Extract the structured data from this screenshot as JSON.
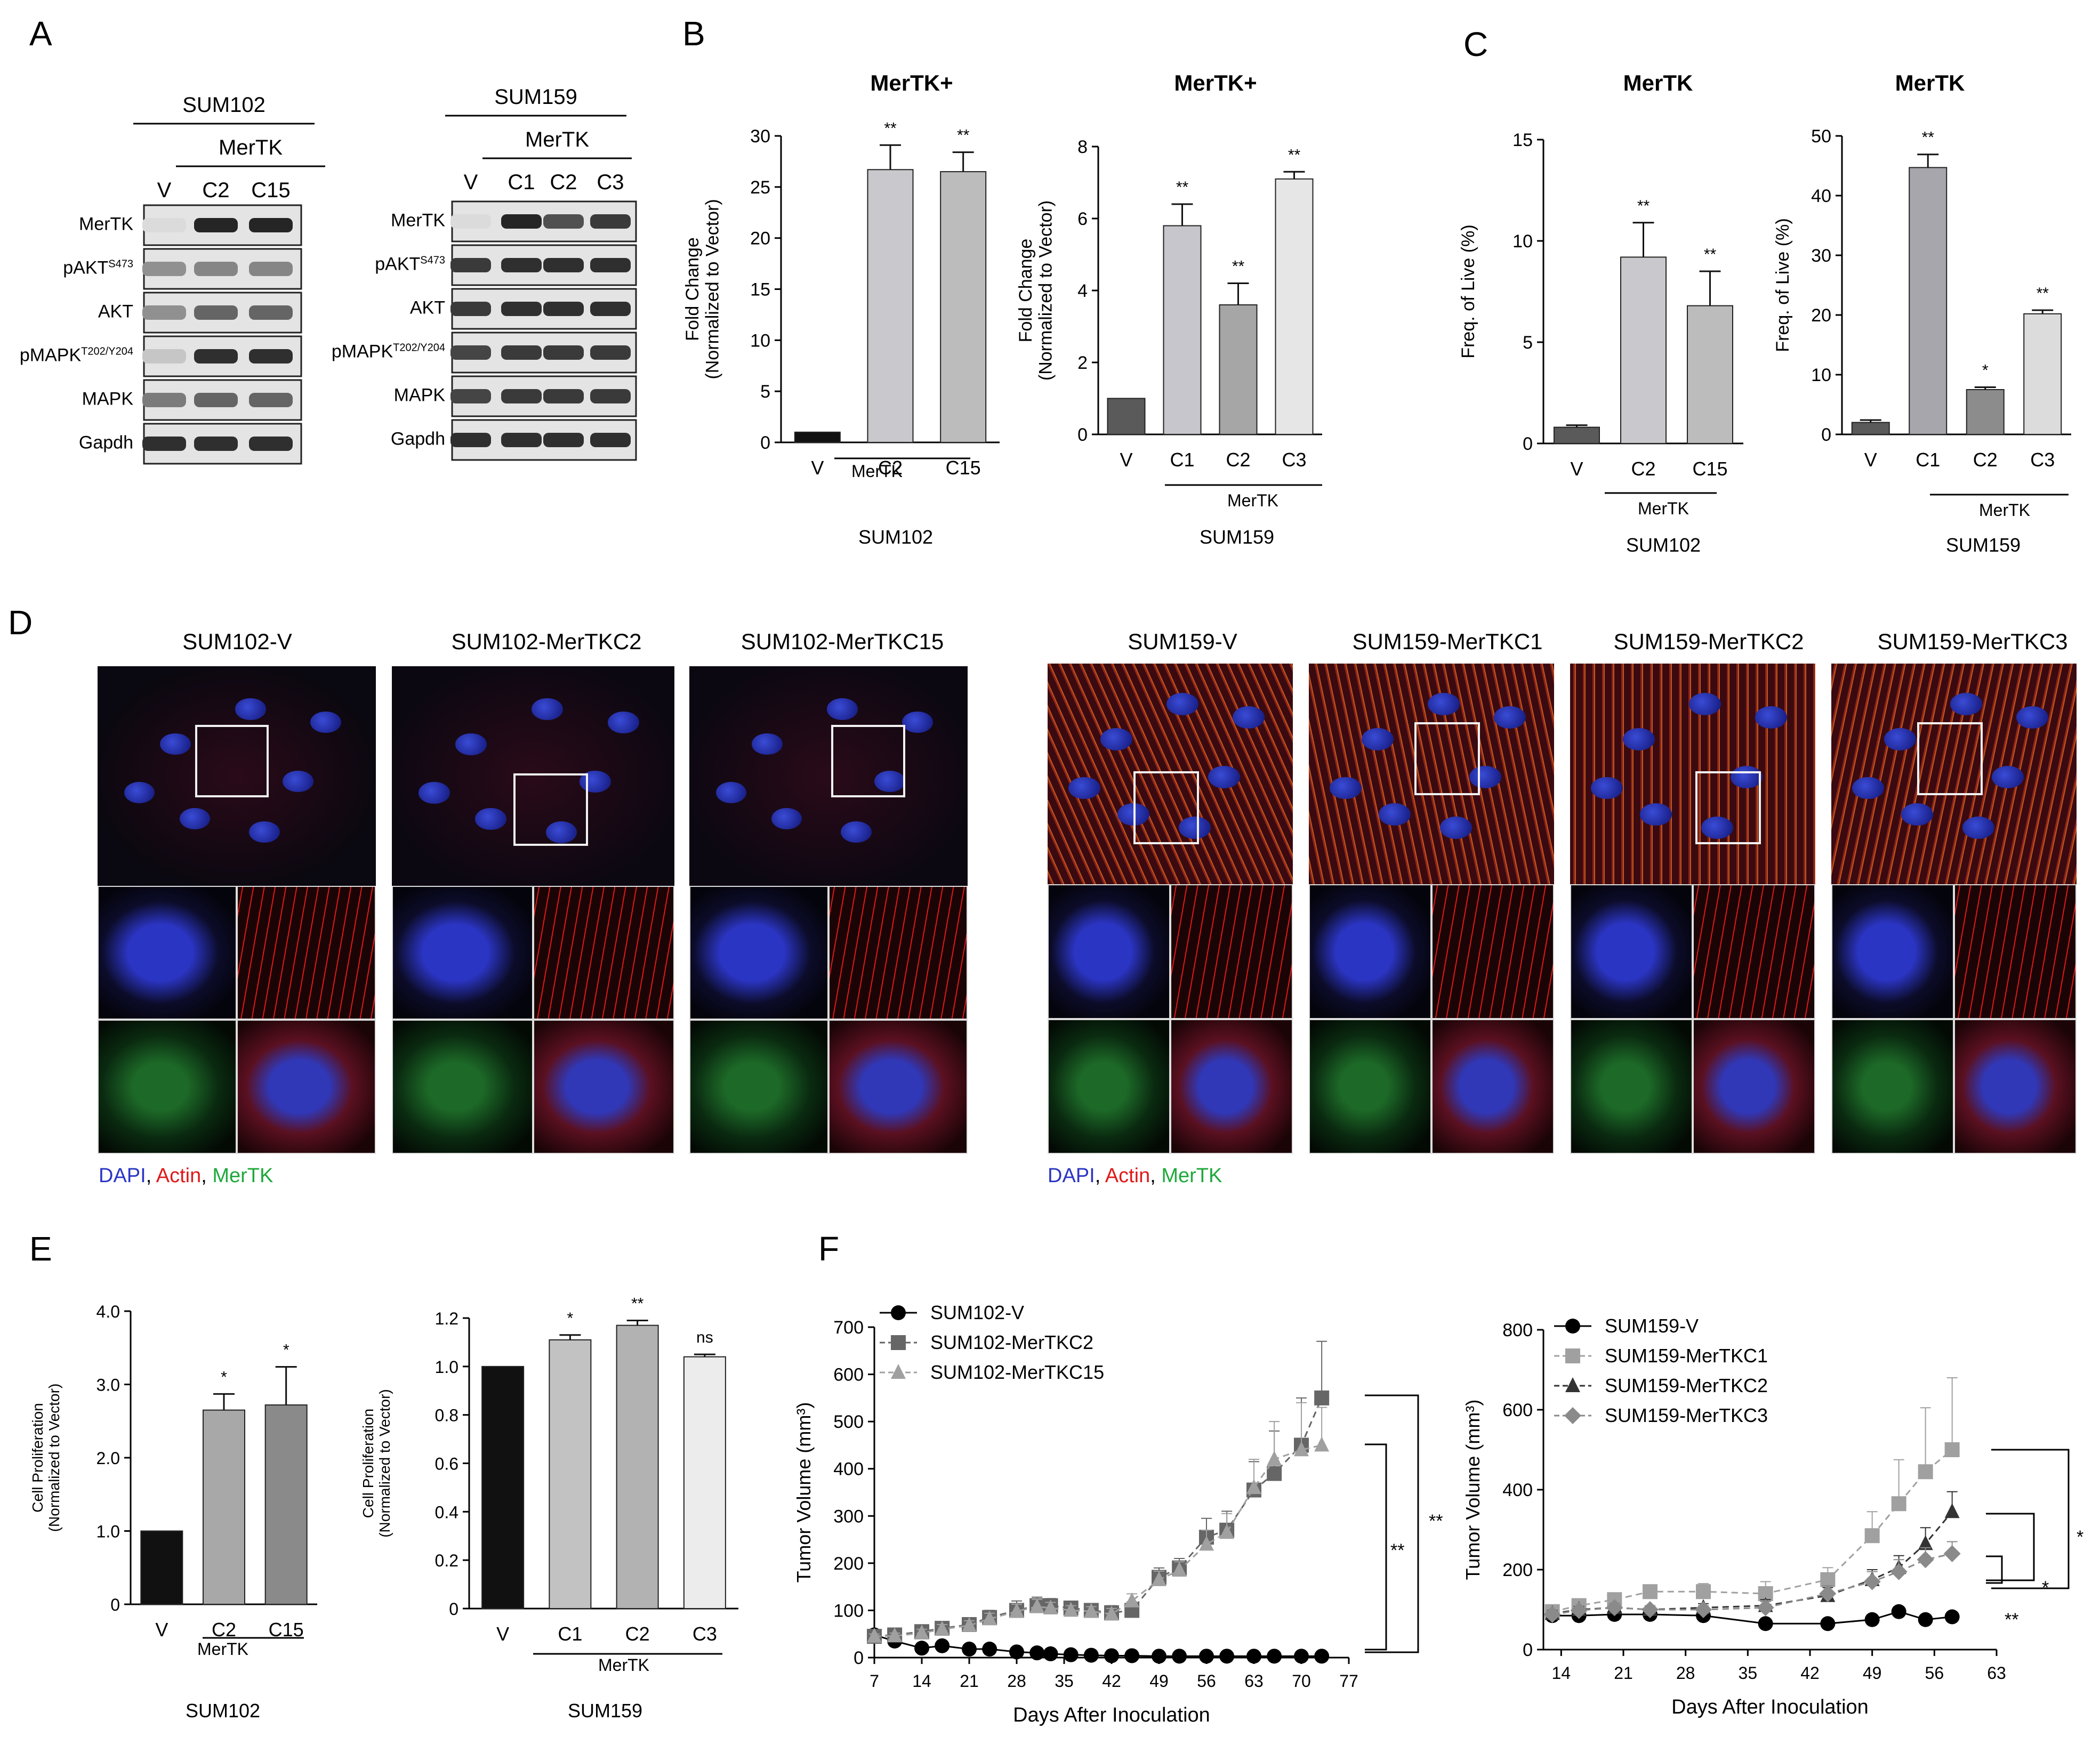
{
  "panels": {
    "A": {
      "label": "A",
      "blot1": {
        "cell_line": "SUM102",
        "group": "MerTK",
        "lanes": [
          "V",
          "C2",
          "C15"
        ],
        "rows": [
          "MerTK",
          "pAKT",
          "AKT",
          "pMAPK",
          "MAPK",
          "Gapdh"
        ],
        "row_sups": [
          "",
          "S473",
          "",
          "T202/Y204",
          "",
          ""
        ],
        "band_intensity": [
          [
            0.05,
            0.9,
            0.9
          ],
          [
            0.4,
            0.45,
            0.45
          ],
          [
            0.4,
            0.6,
            0.6
          ],
          [
            0.15,
            0.85,
            0.85
          ],
          [
            0.5,
            0.6,
            0.6
          ],
          [
            0.85,
            0.85,
            0.85
          ]
        ]
      },
      "blot2": {
        "cell_line": "SUM159",
        "group": "MerTK",
        "lanes": [
          "V",
          "C1",
          "C2",
          "C3"
        ],
        "rows": [
          "MerTK",
          "pAKT",
          "AKT",
          "pMAPK",
          "MAPK",
          "Gapdh"
        ],
        "row_sups": [
          "",
          "S473",
          "",
          "T202/Y204",
          "",
          ""
        ],
        "band_intensity": [
          [
            0.05,
            0.9,
            0.7,
            0.8
          ],
          [
            0.8,
            0.85,
            0.85,
            0.85
          ],
          [
            0.8,
            0.85,
            0.85,
            0.85
          ],
          [
            0.75,
            0.8,
            0.8,
            0.8
          ],
          [
            0.75,
            0.8,
            0.8,
            0.8
          ],
          [
            0.85,
            0.85,
            0.85,
            0.85
          ]
        ]
      }
    },
    "B": {
      "label": "B"
    },
    "C": {
      "label": "C"
    },
    "D": {
      "label": "D",
      "sum102": {
        "titles": [
          "SUM102-V",
          "SUM102-MerTKC2",
          "SUM102-MerTKC15"
        ],
        "legend": {
          "dapi": "DAPI",
          "actin": "Actin",
          "mertk": "MerTK"
        }
      },
      "sum159": {
        "titles": [
          "SUM159-V",
          "SUM159-MerTKC1",
          "SUM159-MerTKC2",
          "SUM159-MerTKC3"
        ],
        "legend": {
          "dapi": "DAPI",
          "actin": "Actin",
          "mertk": "MerTK"
        }
      },
      "colors": {
        "dapi": "#2b35c4",
        "actin": "#e01818",
        "mertk": "#1ea83a"
      }
    },
    "E": {
      "label": "E"
    },
    "F": {
      "label": "F"
    }
  },
  "chart_data": [
    {
      "id": "B1",
      "type": "bar",
      "title": "MerTK+",
      "categories": [
        "V",
        "C2",
        "C15"
      ],
      "values": [
        1,
        26.7,
        26.5
      ],
      "errors": [
        0,
        2.4,
        1.9
      ],
      "sig": [
        "",
        "**",
        "**"
      ],
      "colors": [
        "#111111",
        "#c9c9cd",
        "#bcbcbc"
      ],
      "ylabel": [
        "Fold Change",
        "(Normalized to Vector)"
      ],
      "yticks": [
        "0",
        "5",
        "10",
        "15",
        "20",
        "25",
        "30"
      ],
      "ylim": [
        0,
        30
      ],
      "group_label": "MerTK",
      "cell_line": "SUM102"
    },
    {
      "id": "B2",
      "type": "bar",
      "title": "MerTK+",
      "categories": [
        "V",
        "C1",
        "C2",
        "C3"
      ],
      "values": [
        1,
        5.8,
        3.6,
        7.1
      ],
      "errors": [
        0,
        0.6,
        0.6,
        0.2
      ],
      "sig": [
        "",
        "**",
        "**",
        "**"
      ],
      "colors": [
        "#5a5a5a",
        "#c6c6cc",
        "#a6a6a6",
        "#e6e6e6"
      ],
      "ylabel": [
        "Fold Change",
        "(Normalized to Vector)"
      ],
      "yticks": [
        "0",
        "2",
        "4",
        "6",
        "8"
      ],
      "ylim": [
        0,
        8
      ],
      "group_label": "MerTK",
      "cell_line": "SUM159"
    },
    {
      "id": "C1",
      "type": "bar",
      "title": "MerTK",
      "categories": [
        "V",
        "C2",
        "C15"
      ],
      "values": [
        0.8,
        9.2,
        6.8
      ],
      "errors": [
        0.1,
        1.7,
        1.7
      ],
      "sig": [
        "",
        "**",
        "**"
      ],
      "colors": [
        "#5a5a5a",
        "#c9c9cd",
        "#bcbcbc"
      ],
      "ylabel": [
        "Freq. of Live (%)"
      ],
      "yticks": [
        "0",
        "5",
        "10",
        "15"
      ],
      "ylim": [
        0,
        15
      ],
      "group_label": "MerTK",
      "cell_line": "SUM102"
    },
    {
      "id": "C2",
      "type": "bar",
      "title": "MerTK",
      "categories": [
        "V",
        "C1",
        "C2",
        "C3"
      ],
      "values": [
        2,
        44.7,
        7.5,
        20.2
      ],
      "errors": [
        0.4,
        2.2,
        0.4,
        0.6
      ],
      "sig": [
        "",
        "**",
        "*",
        "**"
      ],
      "colors": [
        "#5a5a5a",
        "#a6a6ac",
        "#8c8c8c",
        "#dcdcdc"
      ],
      "ylabel": [
        "Freq. of Live (%)"
      ],
      "yticks": [
        "0",
        "10",
        "20",
        "30",
        "40",
        "50"
      ],
      "ylim": [
        0,
        50
      ],
      "group_label": "MerTK",
      "cell_line": "SUM159"
    },
    {
      "id": "E1",
      "type": "bar",
      "title": "",
      "categories": [
        "V",
        "C2",
        "C15"
      ],
      "values": [
        1.0,
        2.65,
        2.72
      ],
      "errors": [
        0,
        0.22,
        0.52
      ],
      "sig": [
        "",
        "*",
        "*"
      ],
      "colors": [
        "#111111",
        "#a8a8a8",
        "#8a8a8a"
      ],
      "ylabel": [
        "Cell Proliferation",
        "(Normalized to Vector)"
      ],
      "yticks": [
        "0",
        "1.0",
        "2.0",
        "3.0",
        "4.0"
      ],
      "ylim": [
        0,
        4
      ],
      "group_label": "MerTK",
      "cell_line": "SUM102"
    },
    {
      "id": "E2",
      "type": "bar",
      "title": "",
      "categories": [
        "V",
        "C1",
        "C2",
        "C3"
      ],
      "values": [
        1.0,
        1.11,
        1.17,
        1.04
      ],
      "errors": [
        0,
        0.02,
        0.02,
        0.01
      ],
      "sig": [
        "",
        "*",
        "**",
        "ns"
      ],
      "colors": [
        "#111111",
        "#c2c2c2",
        "#b2b2b2",
        "#ececec"
      ],
      "ylabel": [
        "Cell Proliferation",
        "(Normalized to Vector)"
      ],
      "yticks": [
        "0",
        "0.2",
        "0.4",
        "0.6",
        "0.8",
        "1.0",
        "1.2"
      ],
      "ylim": [
        0,
        1.2
      ],
      "group_label": "MerTK",
      "cell_line": "SUM159"
    },
    {
      "id": "F1",
      "type": "line",
      "title": "",
      "xlabel": "Days After Inoculation",
      "ylabel": "Tumor Volume (mm³)",
      "xlim": [
        7,
        77
      ],
      "ylim": [
        0,
        700
      ],
      "xticks": [
        "7",
        "14",
        "21",
        "28",
        "35",
        "42",
        "49",
        "56",
        "63",
        "70",
        "77"
      ],
      "yticks": [
        "0",
        "100",
        "200",
        "300",
        "400",
        "500",
        "600",
        "700"
      ],
      "series": [
        {
          "name": "SUM102-V",
          "marker": "circle",
          "color": "#000000",
          "dash": false,
          "x": [
            7,
            10,
            14,
            17,
            21,
            24,
            28,
            31,
            33,
            36,
            39,
            42,
            45,
            49,
            52,
            56,
            59,
            63,
            66,
            70,
            73
          ],
          "y": [
            48,
            35,
            20,
            25,
            18,
            18,
            12,
            10,
            8,
            6,
            5,
            4,
            4,
            3,
            3,
            3,
            3,
            3,
            3,
            3,
            3
          ],
          "err": [
            5,
            5,
            5,
            5,
            5,
            5,
            5,
            5,
            5,
            5,
            5,
            5,
            5,
            5,
            5,
            5,
            5,
            5,
            5,
            5,
            5
          ]
        },
        {
          "name": "SUM102-MerTKC2",
          "marker": "square",
          "color": "#666666",
          "dash": true,
          "x": [
            7,
            10,
            14,
            17,
            21,
            24,
            28,
            31,
            33,
            36,
            39,
            42,
            45,
            49,
            52,
            56,
            59,
            63,
            66,
            70,
            73
          ],
          "y": [
            45,
            48,
            55,
            62,
            70,
            85,
            100,
            110,
            110,
            105,
            100,
            95,
            100,
            170,
            190,
            255,
            270,
            355,
            390,
            450,
            550
          ],
          "err": [
            5,
            8,
            10,
            12,
            12,
            15,
            20,
            18,
            15,
            12,
            12,
            15,
            18,
            20,
            20,
            40,
            40,
            60,
            90,
            100,
            120
          ]
        },
        {
          "name": "SUM102-MerTKC15",
          "marker": "triangle",
          "color": "#a0a0a0",
          "dash": true,
          "x": [
            7,
            10,
            14,
            17,
            21,
            24,
            28,
            31,
            33,
            36,
            39,
            42,
            45,
            49,
            52,
            56,
            59,
            63,
            66,
            70,
            73
          ],
          "y": [
            45,
            46,
            52,
            60,
            68,
            82,
            98,
            108,
            105,
            100,
            98,
            92,
            120,
            165,
            185,
            240,
            265,
            360,
            420,
            440,
            450
          ],
          "err": [
            5,
            6,
            8,
            10,
            10,
            12,
            15,
            15,
            12,
            10,
            10,
            12,
            15,
            18,
            18,
            30,
            40,
            60,
            80,
            100,
            80
          ]
        }
      ],
      "brackets": [
        "**",
        "**"
      ]
    },
    {
      "id": "F2",
      "type": "line",
      "title": "",
      "xlabel": "Days After Inoculation",
      "ylabel": "Tumor Volume (mm³)",
      "xlim": [
        12,
        63
      ],
      "ylim": [
        0,
        800
      ],
      "xticks": [
        "14",
        "21",
        "28",
        "35",
        "42",
        "49",
        "56",
        "63"
      ],
      "yticks": [
        "0",
        "200",
        "400",
        "600",
        "800"
      ],
      "series": [
        {
          "name": "SUM159-V",
          "marker": "circle",
          "color": "#000000",
          "dash": false,
          "x": [
            13,
            16,
            20,
            24,
            30,
            37,
            44,
            49,
            52,
            55,
            58
          ],
          "y": [
            85,
            85,
            88,
            88,
            85,
            65,
            65,
            75,
            95,
            75,
            82
          ],
          "err": [
            5,
            5,
            5,
            5,
            5,
            5,
            5,
            5,
            5,
            5,
            5
          ]
        },
        {
          "name": "SUM159-MerTKC1",
          "marker": "square",
          "color": "#a0a0a0",
          "dash": true,
          "x": [
            13,
            16,
            20,
            24,
            30,
            37,
            44,
            49,
            52,
            55,
            58
          ],
          "y": [
            95,
            110,
            125,
            145,
            145,
            140,
            175,
            285,
            365,
            445,
            500
          ],
          "err": [
            10,
            10,
            15,
            15,
            20,
            30,
            30,
            60,
            110,
            160,
            180
          ]
        },
        {
          "name": "SUM159-MerTKC2",
          "marker": "triangle",
          "color": "#333333",
          "dash": true,
          "x": [
            13,
            16,
            20,
            24,
            30,
            37,
            44,
            49,
            52,
            55,
            58
          ],
          "y": [
            90,
            100,
            105,
            100,
            105,
            110,
            135,
            175,
            205,
            265,
            345
          ],
          "err": [
            8,
            8,
            10,
            10,
            10,
            15,
            20,
            25,
            30,
            40,
            50
          ]
        },
        {
          "name": "SUM159-MerTKC3",
          "marker": "diamond",
          "color": "#8a8a8a",
          "dash": true,
          "x": [
            13,
            16,
            20,
            24,
            30,
            37,
            44,
            49,
            52,
            55,
            58
          ],
          "y": [
            88,
            98,
            105,
            100,
            100,
            105,
            140,
            170,
            195,
            225,
            240
          ],
          "err": [
            8,
            8,
            10,
            10,
            10,
            15,
            20,
            25,
            30,
            30,
            30
          ]
        }
      ],
      "brackets": [
        "*",
        "*",
        "**"
      ]
    }
  ]
}
